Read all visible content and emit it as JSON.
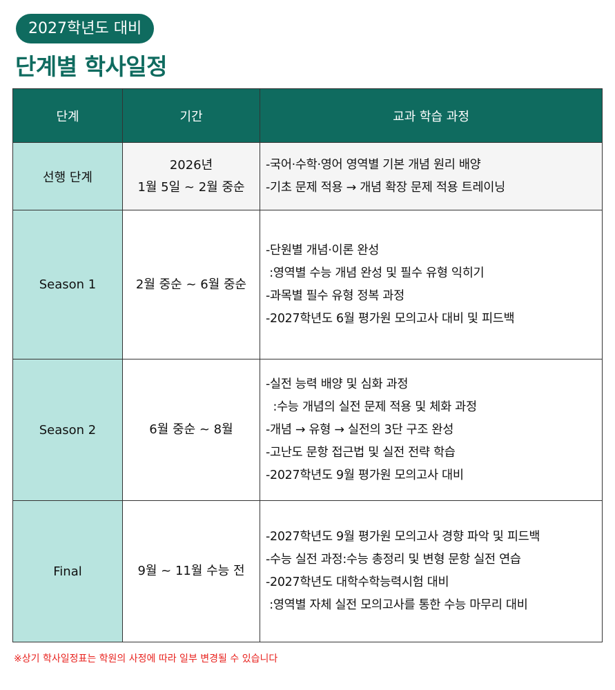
{
  "badge": "2027학년도 대비",
  "title": "단계별 학사일정",
  "colors": {
    "primary": "#0f6b5f",
    "stage_bg": "#b8e4df",
    "note": "#e8221e"
  },
  "table": {
    "headers": [
      "단계",
      "기간",
      "교과 학습 과정"
    ],
    "rows": [
      {
        "stage": "선행 단계",
        "period": [
          "2026년",
          "1월 5일 ~ 2월 중순"
        ],
        "content": [
          "-국어·수학·영어 영역별 기본 개념 원리 배양",
          "-기초 문제 적용 → 개념 확장 문제 적용 트레이닝"
        ]
      },
      {
        "stage": "Season 1",
        "period": [
          "2월 중순 ~ 6월 중순"
        ],
        "content": [
          "-단원별 개념·이론 완성",
          " :영역별 수능 개념 완성 및 필수 유형 익히기",
          "-과목별 필수 유형 정복 과정",
          "-2027학년도 6월 평가원 모의고사 대비 및 피드백"
        ]
      },
      {
        "stage": "Season 2",
        "period": [
          "6월 중순 ~ 8월"
        ],
        "content": [
          "-실전 능력 배양 및 심화 과정",
          "  :수능 개념의 실전 문제 적용 및 체화 과정",
          "-개념 → 유형 → 실전의 3단 구조 완성",
          "-고난도 문항 접근법 및 실전 전략 학습",
          "-2027학년도 9월 평가원 모의고사 대비"
        ]
      },
      {
        "stage": "Final",
        "period": [
          "9월 ~ 11월 수능 전"
        ],
        "content": [
          "-2027학년도 9월 평가원 모의고사 경향 파악 및 피드백",
          "-수능 실전 과정:수능 총정리 및 변형 문항 실전 연습",
          "-2027학년도 대학수학능력시험 대비",
          " :영역별 자체 실전 모의고사를 통한 수능 마무리 대비"
        ]
      }
    ]
  },
  "note": "※상기 학사일정표는 학원의 사정에 따라 일부 변경될 수 있습니다"
}
